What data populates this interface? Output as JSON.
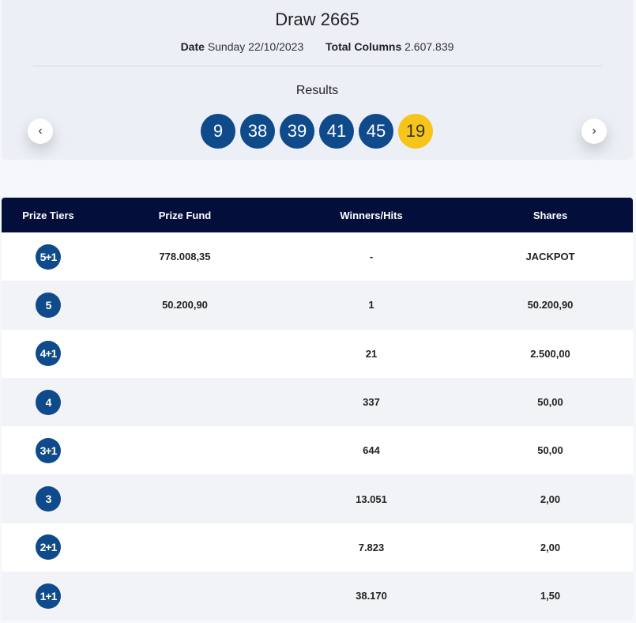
{
  "draw": {
    "title": "Draw 2665",
    "date_label": "Date",
    "date_value": "Sunday 22/10/2023",
    "columns_label": "Total Columns",
    "columns_value": "2.607.839",
    "results_label": "Results",
    "numbers": [
      "9",
      "38",
      "39",
      "41",
      "45"
    ],
    "bonus": "19",
    "prev_icon": "chevron-left",
    "next_icon": "chevron-right",
    "colors": {
      "ball": "#0f4a8a",
      "bonus": "#f7c419",
      "header": "#030f3a"
    }
  },
  "table": {
    "headers": [
      "Prize Tiers",
      "Prize Fund",
      "Winners/Hits",
      "Shares"
    ],
    "rows": [
      {
        "tier": "5+1",
        "fund": "778.008,35",
        "winners": "-",
        "shares": "JACKPOT"
      },
      {
        "tier": "5",
        "fund": "50.200,90",
        "winners": "1",
        "shares": "50.200,90"
      },
      {
        "tier": "4+1",
        "fund": "",
        "winners": "21",
        "shares": "2.500,00"
      },
      {
        "tier": "4",
        "fund": "",
        "winners": "337",
        "shares": "50,00"
      },
      {
        "tier": "3+1",
        "fund": "",
        "winners": "644",
        "shares": "50,00"
      },
      {
        "tier": "3",
        "fund": "",
        "winners": "13.051",
        "shares": "2,00"
      },
      {
        "tier": "2+1",
        "fund": "",
        "winners": "7.823",
        "shares": "2,00"
      },
      {
        "tier": "1+1",
        "fund": "",
        "winners": "38.170",
        "shares": "1,50"
      }
    ]
  }
}
